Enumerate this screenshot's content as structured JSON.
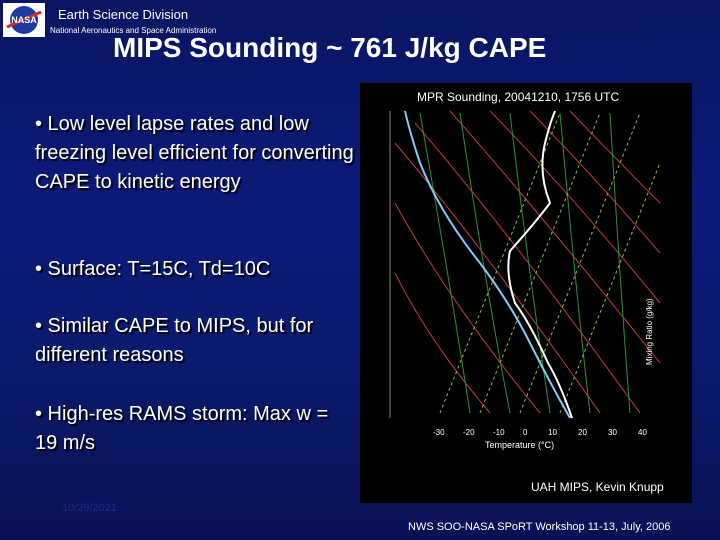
{
  "header": {
    "logo_name": "nasa-meatball-logo",
    "logo_text": "NASA",
    "division": "Earth Science Division",
    "agency": "National Aeronautics and Space Administration"
  },
  "title": "MIPS Sounding ~ 761 J/kg CAPE",
  "bullets": [
    "• Low level lapse rates and low freezing level efficient for converting CAPE to kinetic energy",
    "• Surface: T=15C, Td=10C",
    "• Similar CAPE to MIPS, but for different reasons",
    "• High-res RAMS storm: Max w = 19 m/s"
  ],
  "sounding": {
    "title": "MPR Sounding, 20041210, 1756 UTC",
    "xlabel": "Temperature (°C)",
    "ratio_label": "Mixing Ratio (g/kg)",
    "x_ticks": [
      "-30",
      "-20",
      "-10",
      "0",
      "10",
      "20",
      "30",
      "40"
    ],
    "credit": "UAH MIPS, Kevin Knupp",
    "colors": {
      "temperature": "#ffffff",
      "dewpoint": "#7ecbff",
      "dry_adiabat": "#c83a3a",
      "moist_adiabat": "#2f8f3a",
      "mixing_ratio": "#8fbf4a"
    }
  },
  "footer": {
    "date": "10/29/2021",
    "workshop": "NWS SOO-NASA SPoRT Workshop 11-13, July, 2006"
  }
}
